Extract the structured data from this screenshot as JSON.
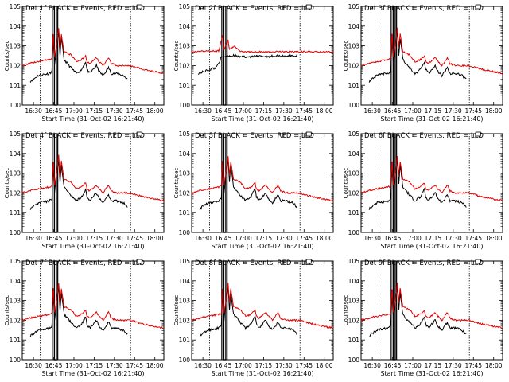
{
  "chart_data": [
    {
      "type": "line",
      "title": "Det 1f BLACK = Events, RED = LLD",
      "xlabel": "Start Time (31-Oct-02 16:21:40)",
      "ylabel": "Counts/sec",
      "y_scale": "log",
      "ylim": [
        1,
        100000
      ],
      "x_ticks": [
        "16:30",
        "16:45",
        "17:00",
        "17:15",
        "17:30",
        "17:45",
        "18:00"
      ],
      "y_ticks": [
        "10^0",
        "10^1",
        "10^2",
        "10^3",
        "10^4",
        "10^5"
      ],
      "grid": false,
      "legend": "none",
      "variant": "standard",
      "series": [
        {
          "name": "Events",
          "color": "#000000"
        },
        {
          "name": "LLD",
          "color": "#e00000"
        }
      ]
    },
    {
      "type": "line",
      "title": "Det 2f BLACK = Events, RED = LLD",
      "xlabel": "Start Time (31-Oct-02 16:21:40)",
      "ylabel": "Counts/sec",
      "y_scale": "log",
      "ylim": [
        1,
        100000
      ],
      "x_ticks": [
        "16:30",
        "16:45",
        "17:00",
        "17:15",
        "17:30",
        "17:45",
        "18:00"
      ],
      "y_ticks": [
        "10^0",
        "10^1",
        "10^2",
        "10^3",
        "10^4",
        "10^5"
      ],
      "grid": false,
      "legend": "none",
      "variant": "flat",
      "series": [
        {
          "name": "Events",
          "color": "#000000"
        },
        {
          "name": "LLD",
          "color": "#e00000"
        }
      ]
    },
    {
      "type": "line",
      "title": "Det 3f BLACK = Events, RED = LLD",
      "xlabel": "Start Time (31-Oct-02 16:21:40)",
      "ylabel": "Counts/sec",
      "y_scale": "log",
      "ylim": [
        1,
        100000
      ],
      "x_ticks": [
        "16:30",
        "16:45",
        "17:00",
        "17:15",
        "17:30",
        "17:45",
        "18:00"
      ],
      "y_ticks": [
        "10^0",
        "10^1",
        "10^2",
        "10^3",
        "10^4",
        "10^5"
      ],
      "grid": false,
      "legend": "none",
      "variant": "standard",
      "series": [
        {
          "name": "Events",
          "color": "#000000"
        },
        {
          "name": "LLD",
          "color": "#e00000"
        }
      ]
    },
    {
      "type": "line",
      "title": "Det 4f BLACK = Events, RED = LLD",
      "xlabel": "Start Time (31-Oct-02 16:21:40)",
      "ylabel": "Counts/sec",
      "y_scale": "log",
      "ylim": [
        1,
        100000
      ],
      "x_ticks": [
        "16:30",
        "16:45",
        "17:00",
        "17:15",
        "17:30",
        "17:45",
        "18:00"
      ],
      "y_ticks": [
        "10^0",
        "10^1",
        "10^2",
        "10^3",
        "10^4",
        "10^5"
      ],
      "grid": false,
      "legend": "none",
      "variant": "standard",
      "series": [
        {
          "name": "Events",
          "color": "#000000"
        },
        {
          "name": "LLD",
          "color": "#e00000"
        }
      ]
    },
    {
      "type": "line",
      "title": "Det 5f BLACK = Events, RED = LLD",
      "xlabel": "Start Time (31-Oct-02 16:21:40)",
      "ylabel": "Counts/sec",
      "y_scale": "log",
      "ylim": [
        1,
        100000
      ],
      "x_ticks": [
        "16:30",
        "16:45",
        "17:00",
        "17:15",
        "17:30",
        "17:45",
        "18:00"
      ],
      "y_ticks": [
        "10^0",
        "10^1",
        "10^2",
        "10^3",
        "10^4",
        "10^5"
      ],
      "grid": false,
      "legend": "none",
      "variant": "standard",
      "series": [
        {
          "name": "Events",
          "color": "#000000"
        },
        {
          "name": "LLD",
          "color": "#e00000"
        }
      ]
    },
    {
      "type": "line",
      "title": "Det 6f BLACK = Events, RED = LLD",
      "xlabel": "Start Time (31-Oct-02 16:21:40)",
      "ylabel": "Counts/sec",
      "y_scale": "log",
      "ylim": [
        1,
        100000
      ],
      "x_ticks": [
        "16:30",
        "16:45",
        "17:00",
        "17:15",
        "17:30",
        "17:45",
        "18:00"
      ],
      "y_ticks": [
        "10^0",
        "10^1",
        "10^2",
        "10^3",
        "10^4",
        "10^5"
      ],
      "grid": false,
      "legend": "none",
      "variant": "standard",
      "series": [
        {
          "name": "Events",
          "color": "#000000"
        },
        {
          "name": "LLD",
          "color": "#e00000"
        }
      ]
    },
    {
      "type": "line",
      "title": "Det 7f BLACK = Events, RED = LLD",
      "xlabel": "Start Time (31-Oct-02 16:21:40)",
      "ylabel": "Counts/sec",
      "y_scale": "log",
      "ylim": [
        1,
        100000
      ],
      "x_ticks": [
        "16:30",
        "16:45",
        "17:00",
        "17:15",
        "17:30",
        "17:45",
        "18:00"
      ],
      "y_ticks": [
        "10^0",
        "10^1",
        "10^2",
        "10^3",
        "10^4",
        "10^5"
      ],
      "grid": false,
      "legend": "none",
      "variant": "standard",
      "series": [
        {
          "name": "Events",
          "color": "#000000"
        },
        {
          "name": "LLD",
          "color": "#e00000"
        }
      ]
    },
    {
      "type": "line",
      "title": "Det 8f BLACK = Events, RED = LLD",
      "xlabel": "Start Time (31-Oct-02 16:21:40)",
      "ylabel": "Counts/sec",
      "y_scale": "log",
      "ylim": [
        1,
        100000
      ],
      "x_ticks": [
        "16:30",
        "16:45",
        "17:00",
        "17:15",
        "17:30",
        "17:45",
        "18:00"
      ],
      "y_ticks": [
        "10^0",
        "10^1",
        "10^2",
        "10^3",
        "10^4",
        "10^5"
      ],
      "grid": false,
      "legend": "none",
      "variant": "standard",
      "series": [
        {
          "name": "Events",
          "color": "#000000"
        },
        {
          "name": "LLD",
          "color": "#e00000"
        }
      ]
    },
    {
      "type": "line",
      "title": "Det 9f BLACK = Events, RED = LLD",
      "xlabel": "Start Time (31-Oct-02 16:21:40)",
      "ylabel": "Counts/sec",
      "y_scale": "log",
      "ylim": [
        1,
        100000
      ],
      "x_ticks": [
        "16:30",
        "16:45",
        "17:00",
        "17:15",
        "17:30",
        "17:45",
        "18:00"
      ],
      "y_ticks": [
        "10^0",
        "10^1",
        "10^2",
        "10^3",
        "10^4",
        "10^5"
      ],
      "grid": false,
      "legend": "none",
      "variant": "standard",
      "series": [
        {
          "name": "Events",
          "color": "#000000"
        },
        {
          "name": "LLD",
          "color": "#e00000"
        }
      ]
    }
  ]
}
